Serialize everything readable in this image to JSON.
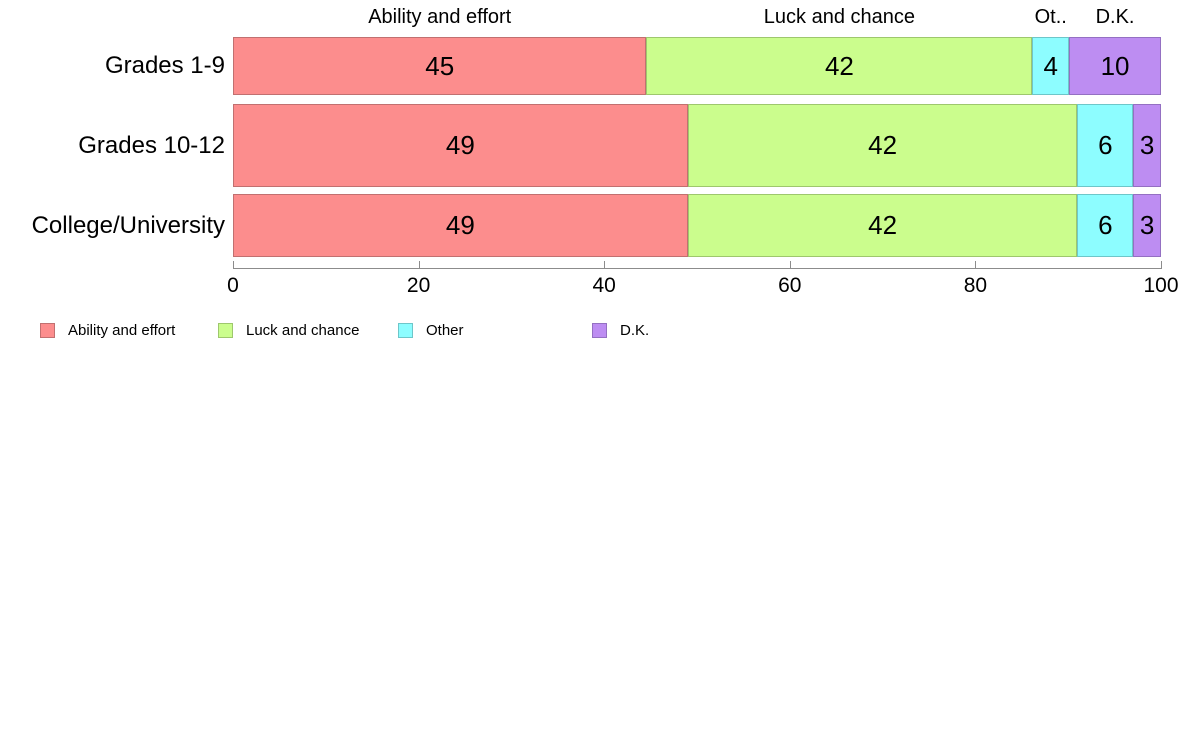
{
  "chart_data": {
    "type": "bar",
    "orientation": "horizontal",
    "stacked": true,
    "normalized_to_100": true,
    "title": "",
    "categories": [
      "Grades 1-9",
      "Grades 10-12",
      "College/University"
    ],
    "series": [
      {
        "name": "Ability and effort",
        "color": "#FC8D8D",
        "border": "#C17070",
        "values": [
          45,
          49,
          49
        ]
      },
      {
        "name": "Luck and chance",
        "color": "#CBFD8D",
        "border": "#9EC76D",
        "values": [
          42,
          42,
          42
        ]
      },
      {
        "name": "Other",
        "color": "#8DFDFF",
        "border": "#6EC6C9",
        "values": [
          4,
          6,
          6
        ]
      },
      {
        "name": "D.K.",
        "color": "#BD8DF2",
        "border": "#9470C2",
        "values": [
          10,
          3,
          3
        ]
      }
    ],
    "column_headers": [
      "Ability and effort",
      "Luck and chance",
      "Ot..",
      "D.K."
    ],
    "value_labels": {
      "Grades 1-9": [
        45,
        42,
        4,
        10
      ],
      "Grades 10-12": [
        49,
        42,
        6,
        3
      ],
      "College/University": [
        49,
        42,
        6,
        3
      ]
    },
    "x_axis": {
      "min": 0,
      "max": 100,
      "ticks": [
        "0",
        "20",
        "40",
        "60",
        "80",
        "100"
      ],
      "grid": false
    },
    "legend": {
      "position": "bottom-left",
      "labels": [
        "Ability and effort",
        "Luck and chance",
        "Other",
        "D.K."
      ]
    }
  }
}
